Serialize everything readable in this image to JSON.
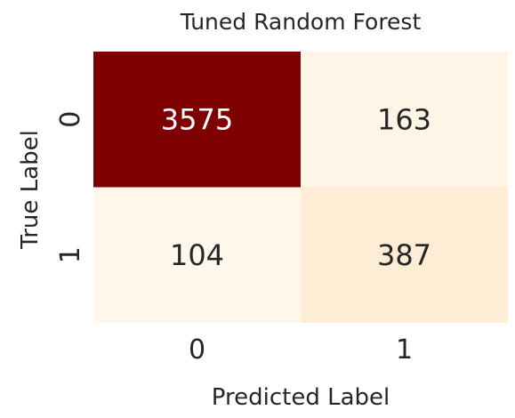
{
  "chart_data": {
    "type": "heatmap",
    "title": "Tuned Random Forest",
    "xlabel": "Predicted Label",
    "ylabel": "True Label",
    "x_categories": [
      "0",
      "1"
    ],
    "y_categories": [
      "0",
      "1"
    ],
    "values": [
      [
        3575,
        163
      ],
      [
        104,
        387
      ]
    ],
    "colormap": "OrRd",
    "colors": {
      "max": "#7f0000",
      "min": "#fff7ec",
      "dark_text": "#262626",
      "light_text": "#ffffff"
    },
    "colorbar": false
  }
}
